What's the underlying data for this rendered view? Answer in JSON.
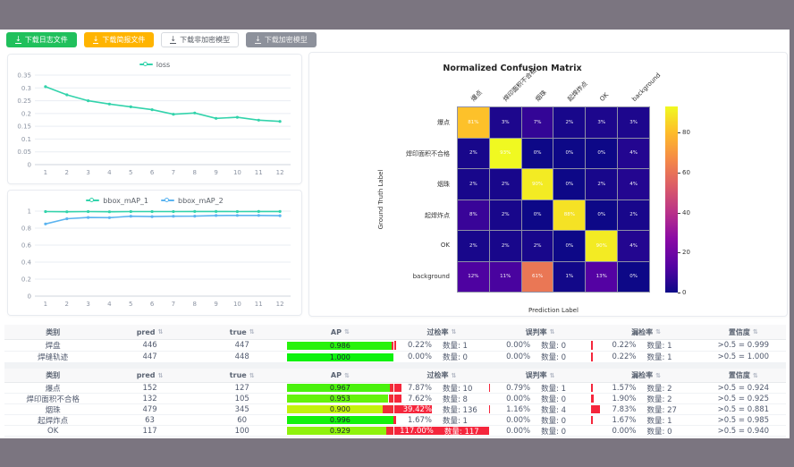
{
  "frame": {
    "band_color": "#7b7580",
    "page_bg": "#ffffff"
  },
  "toolbar": {
    "download_icon": "↓",
    "buttons": [
      {
        "label": "下载日志文件",
        "variant": "success",
        "bg": "#20c05c"
      },
      {
        "label": "下载简报文件",
        "variant": "warning",
        "bg": "#ffb400"
      },
      {
        "label": "下载非加密模型",
        "variant": "default",
        "bg": "#ffffff"
      },
      {
        "label": "下载加密模型",
        "variant": "disabled",
        "bg": "#8d919b"
      }
    ]
  },
  "chart_data": [
    {
      "type": "line",
      "legend": [
        "loss"
      ],
      "x": [
        "1",
        "2",
        "3",
        "4",
        "5",
        "6",
        "7",
        "8",
        "9",
        "10",
        "11",
        "12"
      ],
      "series": [
        {
          "name": "loss",
          "color": "#32d3ab",
          "values": [
            0.305,
            0.273,
            0.25,
            0.237,
            0.226,
            0.215,
            0.197,
            0.202,
            0.181,
            0.185,
            0.174,
            0.169
          ]
        }
      ],
      "ylim": [
        0,
        0.35
      ],
      "yticks": [
        0,
        0.05,
        0.1,
        0.15,
        0.2,
        0.25,
        0.3,
        0.35
      ],
      "grid": true,
      "legend_position": "top"
    },
    {
      "type": "line",
      "legend": [
        "bbox_mAP_1",
        "bbox_mAP_2"
      ],
      "x": [
        "1",
        "2",
        "3",
        "4",
        "5",
        "6",
        "7",
        "8",
        "9",
        "10",
        "11",
        "12"
      ],
      "series": [
        {
          "name": "bbox_mAP_1",
          "color": "#32d3ab",
          "values": [
            0.995,
            0.993,
            0.995,
            0.993,
            0.995,
            0.995,
            0.995,
            0.996,
            0.996,
            0.995,
            0.996,
            0.996
          ]
        },
        {
          "name": "bbox_mAP_2",
          "color": "#5cb4f0",
          "values": [
            0.85,
            0.91,
            0.925,
            0.923,
            0.94,
            0.936,
            0.94,
            0.941,
            0.948,
            0.95,
            0.949,
            0.946
          ]
        }
      ],
      "ylim": [
        0,
        1
      ],
      "yticks": [
        0,
        0.2,
        0.4,
        0.6,
        0.8,
        1
      ],
      "grid": true,
      "legend_position": "top"
    },
    {
      "type": "heatmap",
      "title": "Normalized Confusion Matrix",
      "xlabel": "Prediction Label",
      "ylabel": "Ground Truth Label",
      "colormap": "plasma",
      "vmin": 0,
      "vmax": 93,
      "colorbar_ticks": [
        0,
        20,
        40,
        60,
        80
      ],
      "labels": [
        "爆点",
        "焊印面积不合格",
        "烟珠",
        "起焊炸点",
        "OK",
        "background"
      ],
      "matrix": [
        [
          81,
          3,
          7,
          2,
          3,
          3
        ],
        [
          2,
          93,
          0,
          0,
          0,
          4
        ],
        [
          2,
          2,
          90,
          0,
          2,
          4
        ],
        [
          8,
          2,
          0,
          88,
          0,
          2
        ],
        [
          2,
          2,
          2,
          0,
          90,
          4
        ],
        [
          12,
          11,
          61,
          1,
          13,
          0
        ]
      ],
      "cell_unit": "%"
    }
  ],
  "tables": [
    {
      "headers": [
        "类别",
        "pred",
        "true",
        "AP",
        "过检率",
        "误判率",
        "漏检率",
        "置信度"
      ],
      "sortable": [
        false,
        true,
        true,
        true,
        true,
        true,
        true,
        true
      ],
      "rows": [
        {
          "cls": "焊盘",
          "pred": "446",
          "true": "447",
          "ap": 0.986,
          "ap_text": "0.986",
          "ap_color": "#28f20d",
          "over": {
            "rate": "0.22%",
            "pct": 0.22,
            "count": "数量: 1"
          },
          "mis": {
            "rate": "0.00%",
            "pct": 0,
            "count": "数量: 0"
          },
          "miss": {
            "rate": "0.22%",
            "pct": 0.22,
            "count": "数量: 1"
          },
          "conf": ">0.5 = 0.999"
        },
        {
          "cls": "焊缝轨迹",
          "pred": "447",
          "true": "448",
          "ap": 1.0,
          "ap_text": "1.000",
          "ap_color": "#0df20d",
          "over": {
            "rate": "0.00%",
            "pct": 0,
            "count": "数量: 0"
          },
          "mis": {
            "rate": "0.00%",
            "pct": 0,
            "count": "数量: 0"
          },
          "miss": {
            "rate": "0.22%",
            "pct": 0.22,
            "count": "数量: 1"
          },
          "conf": ">0.5 = 1.000"
        }
      ]
    },
    {
      "headers": [
        "类别",
        "pred",
        "true",
        "AP",
        "过检率",
        "误判率",
        "漏检率",
        "置信度"
      ],
      "sortable": [
        false,
        true,
        true,
        true,
        true,
        true,
        true,
        true
      ],
      "rows": [
        {
          "cls": "爆点",
          "pred": "152",
          "true": "127",
          "ap": 0.967,
          "ap_text": "0.967",
          "ap_color": "#4af20d",
          "over": {
            "rate": "7.87%",
            "pct": 7.87,
            "count": "数量: 10"
          },
          "mis": {
            "rate": "0.79%",
            "pct": 0.79,
            "count": "数量: 1"
          },
          "miss": {
            "rate": "1.57%",
            "pct": 1.57,
            "count": "数量: 2"
          },
          "conf": ">0.5 = 0.924"
        },
        {
          "cls": "焊印面积不合格",
          "pred": "132",
          "true": "105",
          "ap": 0.953,
          "ap_text": "0.953",
          "ap_color": "#65f20d",
          "over": {
            "rate": "7.62%",
            "pct": 7.62,
            "count": "数量: 8"
          },
          "mis": {
            "rate": "0.00%",
            "pct": 0,
            "count": "数量: 0"
          },
          "miss": {
            "rate": "1.90%",
            "pct": 1.9,
            "count": "数量: 2"
          },
          "conf": ">0.5 = 0.925"
        },
        {
          "cls": "烟珠",
          "pred": "479",
          "true": "345",
          "ap": 0.9,
          "ap_text": "0.900",
          "ap_color": "#c4f20d",
          "over": {
            "rate": "39.42%",
            "pct": 39.42,
            "count": "数量: 136"
          },
          "mis": {
            "rate": "1.16%",
            "pct": 1.16,
            "count": "数量: 4"
          },
          "miss": {
            "rate": "7.83%",
            "pct": 7.83,
            "count": "数量: 27"
          },
          "conf": ">0.5 = 0.881"
        },
        {
          "cls": "起焊炸点",
          "pred": "63",
          "true": "60",
          "ap": 0.996,
          "ap_text": "0.996",
          "ap_color": "#14f20d",
          "over": {
            "rate": "1.67%",
            "pct": 1.67,
            "count": "数量: 1"
          },
          "mis": {
            "rate": "0.00%",
            "pct": 0,
            "count": "数量: 0"
          },
          "miss": {
            "rate": "1.67%",
            "pct": 1.67,
            "count": "数量: 1"
          },
          "conf": ">0.5 = 0.985"
        },
        {
          "cls": "OK",
          "pred": "117",
          "true": "100",
          "ap": 0.929,
          "ap_text": "0.929",
          "ap_color": "#8ff20d",
          "over": {
            "rate": "117.00%",
            "pct": 117,
            "count": "数量: 117"
          },
          "mis": {
            "rate": "0.00%",
            "pct": 0,
            "count": "数量: 0"
          },
          "miss": {
            "rate": "0.00%",
            "pct": 0,
            "count": "数量: 0"
          },
          "conf": ">0.5 = 0.940"
        }
      ]
    }
  ]
}
